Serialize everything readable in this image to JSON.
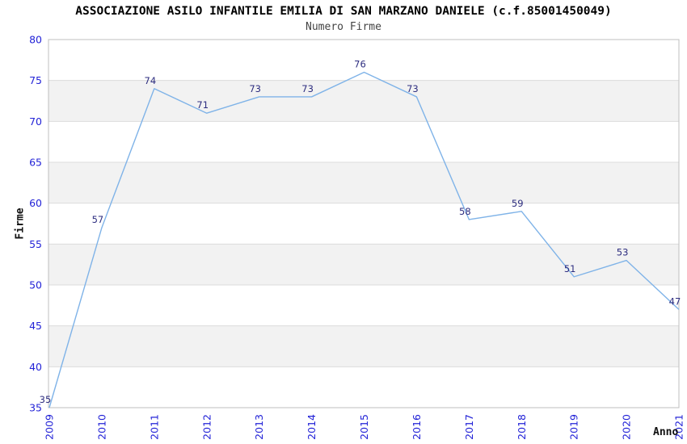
{
  "chart_data": {
    "type": "line",
    "title": "ASSOCIAZIONE ASILO INFANTILE EMILIA DI SAN MARZANO DANIELE (c.f.85001450049)",
    "subtitle": "Numero Firme",
    "xlabel": "Anno",
    "ylabel": "Firme",
    "categories": [
      "2009",
      "2010",
      "2011",
      "2012",
      "2013",
      "2014",
      "2015",
      "2016",
      "2017",
      "2018",
      "2019",
      "2020",
      "2021"
    ],
    "values": [
      35,
      57,
      74,
      71,
      73,
      73,
      76,
      73,
      58,
      59,
      51,
      53,
      47
    ],
    "ylim": [
      35,
      80
    ],
    "yticks": [
      35,
      40,
      45,
      50,
      55,
      60,
      65,
      70,
      75,
      80
    ],
    "grid": "horizontal-bands",
    "legend": "none",
    "point_labels_visible": true,
    "colors": {
      "line": "#7fb3e8",
      "point_label": "#2e2e80",
      "tick_label": "#2323d7",
      "band": "#f2f2f2",
      "gridline": "#dcdcdc",
      "frame": "#bfbfbf",
      "title": "#000000",
      "subtitle": "#444444"
    }
  }
}
